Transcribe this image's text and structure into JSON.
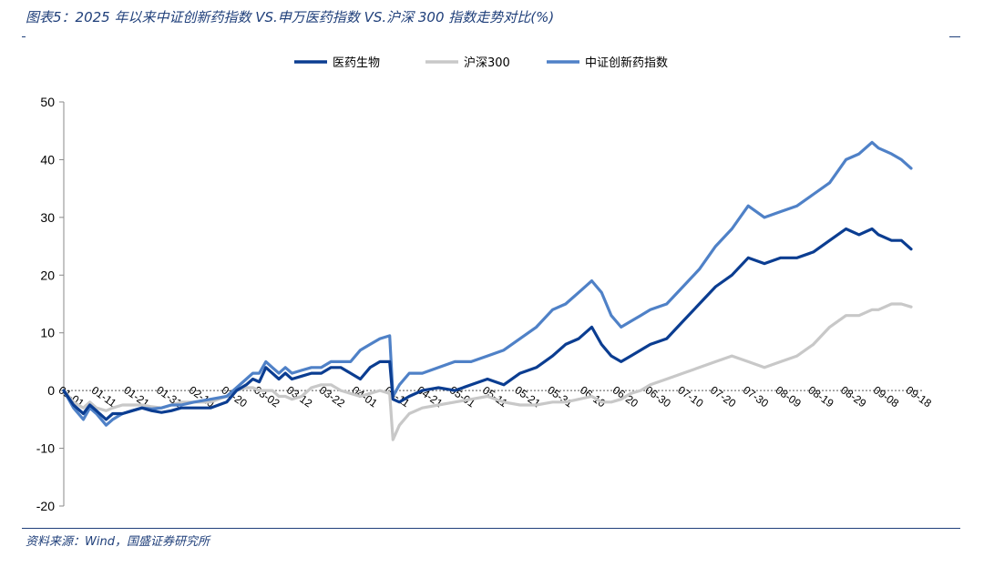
{
  "header": {
    "title": "图表5：2025 年以来中证创新药指数 VS.申万医药指数 VS.沪深 300 指数走势对比(%)"
  },
  "footer": {
    "source": "资料来源：Wind，国盛证券研究所"
  },
  "chart_data": {
    "type": "line",
    "title": "",
    "xlabel": "",
    "ylabel": "",
    "ylim": [
      -20,
      50
    ],
    "yticks": [
      -20,
      -10,
      0,
      10,
      20,
      30,
      40,
      50
    ],
    "legend_position": "top-center",
    "grid": false,
    "xtick_labels": [
      "01-01",
      "01-11",
      "01-21",
      "01-31",
      "02-10",
      "02-20",
      "03-02",
      "03-12",
      "03-22",
      "04-01",
      "04-11",
      "04-21",
      "05-01",
      "05-11",
      "05-21",
      "05-31",
      "06-10",
      "06-20",
      "06-30",
      "07-10",
      "07-20",
      "07-30",
      "08-09",
      "08-19",
      "08-29",
      "09-08",
      "09-18"
    ],
    "x_range_days": [
      0,
      260
    ],
    "series": [
      {
        "name": "医药生物",
        "color": "#0b3d91",
        "points": [
          [
            0,
            0
          ],
          [
            3,
            -2.5
          ],
          [
            6,
            -4
          ],
          [
            8,
            -2.5
          ],
          [
            10,
            -3.5
          ],
          [
            13,
            -5
          ],
          [
            15,
            -4
          ],
          [
            18,
            -4
          ],
          [
            21,
            -3.5
          ],
          [
            24,
            -3
          ],
          [
            27,
            -3.5
          ],
          [
            30,
            -3.8
          ],
          [
            33,
            -3.5
          ],
          [
            36,
            -3
          ],
          [
            40,
            -3
          ],
          [
            45,
            -3
          ],
          [
            50,
            -2
          ],
          [
            53,
            0
          ],
          [
            56,
            1
          ],
          [
            58,
            2
          ],
          [
            60,
            1.5
          ],
          [
            62,
            4
          ],
          [
            64,
            3
          ],
          [
            66,
            2
          ],
          [
            68,
            3
          ],
          [
            70,
            2
          ],
          [
            73,
            2.5
          ],
          [
            76,
            3
          ],
          [
            79,
            3
          ],
          [
            82,
            4
          ],
          [
            85,
            4
          ],
          [
            88,
            3
          ],
          [
            91,
            2
          ],
          [
            94,
            4
          ],
          [
            97,
            5
          ],
          [
            100,
            5
          ],
          [
            101,
            -1.5
          ],
          [
            103,
            -2
          ],
          [
            106,
            -1
          ],
          [
            110,
            0
          ],
          [
            115,
            0.5
          ],
          [
            120,
            0
          ],
          [
            125,
            1
          ],
          [
            130,
            2
          ],
          [
            135,
            1
          ],
          [
            140,
            3
          ],
          [
            145,
            4
          ],
          [
            150,
            6
          ],
          [
            154,
            8
          ],
          [
            158,
            9
          ],
          [
            162,
            11
          ],
          [
            165,
            8
          ],
          [
            168,
            6
          ],
          [
            171,
            5
          ],
          [
            174,
            6
          ],
          [
            177,
            7
          ],
          [
            180,
            8
          ],
          [
            185,
            9
          ],
          [
            190,
            12
          ],
          [
            195,
            15
          ],
          [
            200,
            18
          ],
          [
            205,
            20
          ],
          [
            210,
            23
          ],
          [
            215,
            22
          ],
          [
            220,
            23
          ],
          [
            225,
            23
          ],
          [
            230,
            24
          ],
          [
            235,
            26
          ],
          [
            240,
            28
          ],
          [
            244,
            27
          ],
          [
            248,
            28
          ],
          [
            250,
            27
          ],
          [
            254,
            26
          ],
          [
            257,
            26
          ],
          [
            260,
            24.5
          ]
        ]
      },
      {
        "name": "沪深300",
        "color": "#c8c8c8",
        "points": [
          [
            0,
            0
          ],
          [
            3,
            -2
          ],
          [
            6,
            -3
          ],
          [
            8,
            -2
          ],
          [
            10,
            -3
          ],
          [
            13,
            -3.5
          ],
          [
            15,
            -3
          ],
          [
            18,
            -2.5
          ],
          [
            21,
            -2.5
          ],
          [
            24,
            -2.5
          ],
          [
            27,
            -2.8
          ],
          [
            30,
            -3
          ],
          [
            33,
            -2.5
          ],
          [
            36,
            -2
          ],
          [
            40,
            -2
          ],
          [
            45,
            -2
          ],
          [
            50,
            -1
          ],
          [
            53,
            0
          ],
          [
            56,
            0.5
          ],
          [
            58,
            0.5
          ],
          [
            60,
            0
          ],
          [
            62,
            0
          ],
          [
            64,
            0
          ],
          [
            66,
            -1
          ],
          [
            68,
            -1
          ],
          [
            70,
            -1.5
          ],
          [
            73,
            -1
          ],
          [
            76,
            0.5
          ],
          [
            79,
            1
          ],
          [
            82,
            1
          ],
          [
            85,
            0
          ],
          [
            88,
            -0.5
          ],
          [
            91,
            -1
          ],
          [
            94,
            -0.5
          ],
          [
            97,
            0
          ],
          [
            100,
            -0.5
          ],
          [
            101,
            -8.5
          ],
          [
            103,
            -6
          ],
          [
            106,
            -4
          ],
          [
            110,
            -3
          ],
          [
            115,
            -2.5
          ],
          [
            120,
            -2
          ],
          [
            125,
            -1.5
          ],
          [
            130,
            -1
          ],
          [
            135,
            -2
          ],
          [
            140,
            -2.5
          ],
          [
            145,
            -2.5
          ],
          [
            150,
            -2
          ],
          [
            154,
            -2
          ],
          [
            158,
            -1.5
          ],
          [
            162,
            -1
          ],
          [
            165,
            -2
          ],
          [
            168,
            -2
          ],
          [
            171,
            -1.5
          ],
          [
            174,
            -0.5
          ],
          [
            177,
            0
          ],
          [
            180,
            1
          ],
          [
            185,
            2
          ],
          [
            190,
            3
          ],
          [
            195,
            4
          ],
          [
            200,
            5
          ],
          [
            205,
            6
          ],
          [
            210,
            5
          ],
          [
            215,
            4
          ],
          [
            220,
            5
          ],
          [
            225,
            6
          ],
          [
            230,
            8
          ],
          [
            235,
            11
          ],
          [
            240,
            13
          ],
          [
            244,
            13
          ],
          [
            248,
            14
          ],
          [
            250,
            14
          ],
          [
            254,
            15
          ],
          [
            257,
            15
          ],
          [
            260,
            14.5
          ]
        ]
      },
      {
        "name": "中证创新药指数",
        "color": "#4f81c7",
        "points": [
          [
            0,
            0
          ],
          [
            3,
            -3
          ],
          [
            6,
            -5
          ],
          [
            8,
            -3
          ],
          [
            10,
            -4
          ],
          [
            13,
            -6
          ],
          [
            15,
            -5
          ],
          [
            18,
            -4
          ],
          [
            21,
            -3.5
          ],
          [
            24,
            -3
          ],
          [
            27,
            -3.2
          ],
          [
            30,
            -3
          ],
          [
            33,
            -2.5
          ],
          [
            36,
            -2.5
          ],
          [
            40,
            -2
          ],
          [
            45,
            -1.5
          ],
          [
            50,
            -1
          ],
          [
            53,
            0.5
          ],
          [
            56,
            2
          ],
          [
            58,
            3
          ],
          [
            60,
            3
          ],
          [
            62,
            5
          ],
          [
            64,
            4
          ],
          [
            66,
            3
          ],
          [
            68,
            4
          ],
          [
            70,
            3
          ],
          [
            73,
            3.5
          ],
          [
            76,
            4
          ],
          [
            79,
            4
          ],
          [
            82,
            5
          ],
          [
            85,
            5
          ],
          [
            88,
            5
          ],
          [
            91,
            7
          ],
          [
            94,
            8
          ],
          [
            97,
            9
          ],
          [
            100,
            9.5
          ],
          [
            101,
            -1
          ],
          [
            103,
            1
          ],
          [
            106,
            3
          ],
          [
            110,
            3
          ],
          [
            115,
            4
          ],
          [
            120,
            5
          ],
          [
            125,
            5
          ],
          [
            130,
            6
          ],
          [
            135,
            7
          ],
          [
            140,
            9
          ],
          [
            145,
            11
          ],
          [
            150,
            14
          ],
          [
            154,
            15
          ],
          [
            158,
            17
          ],
          [
            162,
            19
          ],
          [
            165,
            17
          ],
          [
            168,
            13
          ],
          [
            171,
            11
          ],
          [
            174,
            12
          ],
          [
            177,
            13
          ],
          [
            180,
            14
          ],
          [
            185,
            15
          ],
          [
            190,
            18
          ],
          [
            195,
            21
          ],
          [
            200,
            25
          ],
          [
            205,
            28
          ],
          [
            210,
            32
          ],
          [
            215,
            30
          ],
          [
            220,
            31
          ],
          [
            225,
            32
          ],
          [
            230,
            34
          ],
          [
            235,
            36
          ],
          [
            240,
            40
          ],
          [
            244,
            41
          ],
          [
            248,
            43
          ],
          [
            250,
            42
          ],
          [
            254,
            41
          ],
          [
            257,
            40
          ],
          [
            260,
            38.5
          ]
        ]
      }
    ]
  }
}
